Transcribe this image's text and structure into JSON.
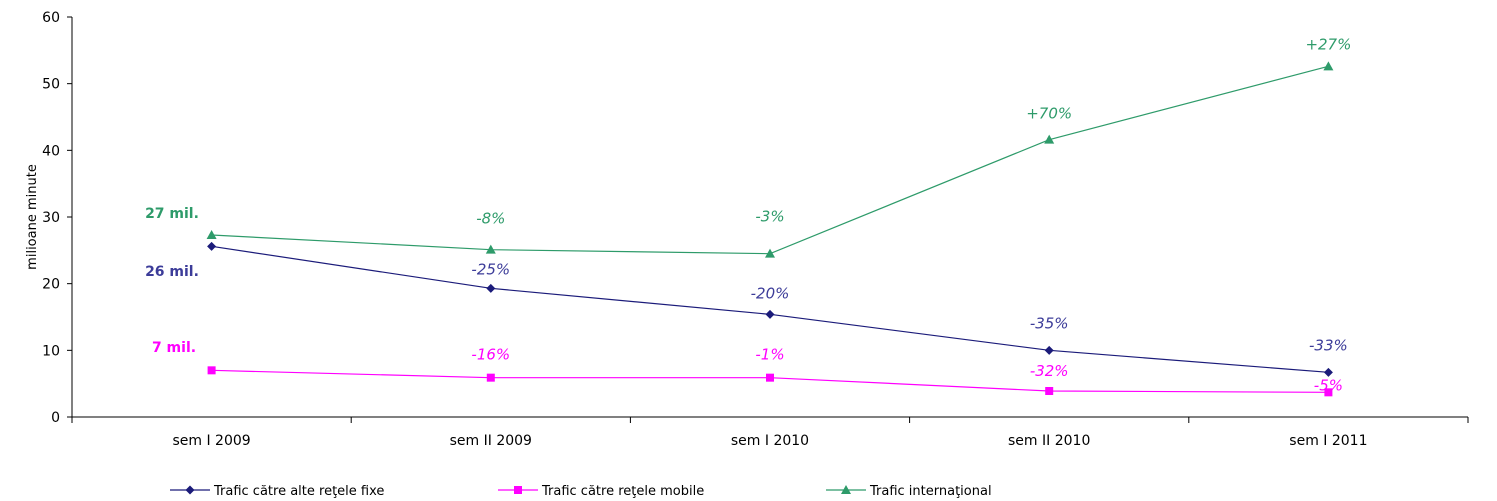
{
  "chart_data": {
    "type": "line",
    "categories": [
      "sem I 2009",
      "sem II 2009",
      "sem I 2010",
      "sem II 2010",
      "sem I 2011"
    ],
    "ylabel": "milioane minute",
    "ylim": [
      0,
      60
    ],
    "yticks": [
      "0",
      "10",
      "20",
      "30",
      "40",
      "50",
      "60"
    ],
    "grid": false,
    "legend_position": "bottom",
    "series": [
      {
        "name": "Trafic către alte reţele fixe",
        "color": "#1b1b7a",
        "marker": "diamond",
        "values": [
          25.6,
          19.3,
          15.4,
          10.0,
          6.7
        ],
        "start_label": "26 mil.",
        "annotations": [
          "",
          "-25%",
          "-20%",
          "-35%",
          "-33%"
        ],
        "annotation_color": "#3c3c99"
      },
      {
        "name": "Trafic către reţele mobile",
        "color": "#ff00ff",
        "marker": "square",
        "values": [
          7.0,
          5.9,
          5.9,
          3.9,
          3.7
        ],
        "start_label": "7 mil.",
        "annotations": [
          "",
          "-16%",
          "-1%",
          "-32%",
          "-5%"
        ],
        "annotation_color": "#ff00ff"
      },
      {
        "name": "Trafic internaţional",
        "color": "#2e9b6a",
        "marker": "triangle",
        "values": [
          27.3,
          25.1,
          24.5,
          41.6,
          52.6
        ],
        "start_label": "27 mil.",
        "annotations": [
          "",
          "-8%",
          "-3%",
          "+70%",
          "+27%"
        ],
        "annotation_color": "#2e9b6a"
      }
    ]
  }
}
